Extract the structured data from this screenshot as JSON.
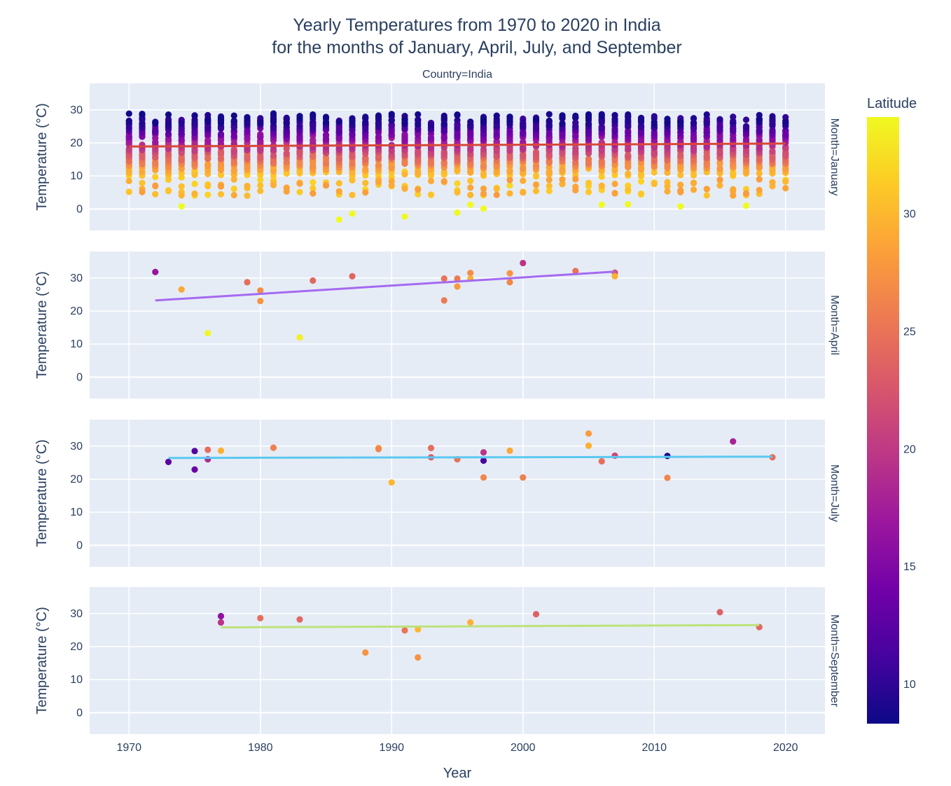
{
  "chart_data": {
    "type": "scatter",
    "title_line1": "Yearly Temperatures from 1970 to 2020 in India",
    "title_line2": "for the months of January, April, July, and September",
    "facet_label": "Country=India",
    "xlabel": "Year",
    "ylabel": "Temperature (°C)",
    "xlim": [
      1967,
      2023
    ],
    "ylim": [
      -6.5,
      38
    ],
    "x_ticks": [
      1970,
      1980,
      1990,
      2000,
      2010,
      2020
    ],
    "y_ticks": [
      0,
      10,
      20,
      30
    ],
    "colorbar": {
      "title": "Latitude",
      "range": [
        8.3,
        34.1
      ],
      "ticks": [
        10,
        15,
        20,
        25,
        30
      ],
      "colors": [
        "#0d0887",
        "#46039f",
        "#7201a8",
        "#9c179e",
        "#bd3786",
        "#d8576b",
        "#ed7953",
        "#fb9f3a",
        "#fdca26",
        "#f0f921"
      ]
    },
    "panels": [
      {
        "label": "Month=January",
        "trend": {
          "x": [
            1970,
            2020
          ],
          "y": [
            18.9,
            19.8
          ],
          "color": "#d8473a"
        },
        "dense_years": [
          1970,
          2020
        ],
        "points": [
          [
            1986,
            -3.2,
            34.1
          ],
          [
            1987,
            -1.4,
            34.1
          ],
          [
            1991,
            -2.3,
            34.1
          ],
          [
            1995,
            -1.1,
            34.1
          ],
          [
            1974,
            0.8,
            34.1
          ],
          [
            1997,
            0.1,
            34.1
          ],
          [
            2012,
            0.8,
            34.1
          ],
          [
            2017,
            1.0,
            34.1
          ],
          [
            1996,
            1.3,
            34.1
          ],
          [
            2006,
            1.3,
            34.1
          ],
          [
            2008,
            1.4,
            34.1
          ]
        ]
      },
      {
        "label": "Month=April",
        "trend": {
          "x": [
            1972,
            2007
          ],
          "y": [
            23.2,
            31.9
          ],
          "color": "#a56af0"
        },
        "points": [
          [
            1972,
            31.8,
            16.5
          ],
          [
            1974,
            26.5,
            29.0
          ],
          [
            1976,
            13.3,
            34.0
          ],
          [
            1979,
            28.7,
            24.5
          ],
          [
            1980,
            26.2,
            27.0
          ],
          [
            1980,
            23.0,
            27.5
          ],
          [
            1983,
            12.0,
            33.5
          ],
          [
            1984,
            29.2,
            24.0
          ],
          [
            1987,
            30.5,
            24.0
          ],
          [
            1994,
            29.8,
            25.0
          ],
          [
            1994,
            23.2,
            25.5
          ],
          [
            1995,
            29.8,
            25.5
          ],
          [
            1995,
            27.4,
            28.0
          ],
          [
            1996,
            31.5,
            27.0
          ],
          [
            1996,
            29.8,
            29.5
          ],
          [
            1999,
            31.4,
            27.5
          ],
          [
            1999,
            28.7,
            26.5
          ],
          [
            2000,
            34.5,
            19.5
          ],
          [
            2004,
            32.1,
            25.0
          ],
          [
            2007,
            31.6,
            22.5
          ],
          [
            2007,
            30.5,
            29.5
          ]
        ]
      },
      {
        "label": "Month=July",
        "trend": {
          "x": [
            1973,
            2019
          ],
          "y": [
            26.4,
            26.8
          ],
          "color": "#5bc8f0"
        },
        "points": [
          [
            1973,
            25.2,
            12.5
          ],
          [
            1975,
            28.5,
            12.0
          ],
          [
            1975,
            22.9,
            13.5
          ],
          [
            1976,
            28.9,
            24.5
          ],
          [
            1976,
            26.0,
            18.5
          ],
          [
            1977,
            28.6,
            29.5
          ],
          [
            1981,
            29.5,
            26.0
          ],
          [
            1989,
            29.4,
            28.5
          ],
          [
            1989,
            29.1,
            26.5
          ],
          [
            1990,
            19.0,
            30.0
          ],
          [
            1993,
            29.4,
            24.5
          ],
          [
            1993,
            26.6,
            23.0
          ],
          [
            1995,
            26.0,
            25.0
          ],
          [
            1997,
            28.1,
            19.5
          ],
          [
            1997,
            25.6,
            11.5
          ],
          [
            1997,
            20.5,
            26.5
          ],
          [
            1999,
            28.6,
            29.0
          ],
          [
            2000,
            20.5,
            26.0
          ],
          [
            2005,
            33.8,
            28.0
          ],
          [
            2005,
            30.1,
            29.5
          ],
          [
            2006,
            25.4,
            24.5
          ],
          [
            2007,
            27.1,
            21.5
          ],
          [
            2011,
            27.0,
            9.0
          ],
          [
            2011,
            20.4,
            26.5
          ],
          [
            2016,
            31.4,
            18.0
          ],
          [
            2019,
            26.6,
            24.5
          ]
        ]
      },
      {
        "label": "Month=September",
        "trend": {
          "x": [
            1977,
            2018
          ],
          "y": [
            25.8,
            26.5
          ],
          "color": "#bde27a"
        },
        "points": [
          [
            1977,
            29.2,
            16.0
          ],
          [
            1977,
            27.3,
            19.5
          ],
          [
            1980,
            28.6,
            24.5
          ],
          [
            1983,
            28.2,
            24.0
          ],
          [
            1988,
            18.2,
            27.5
          ],
          [
            1991,
            24.9,
            25.0
          ],
          [
            1992,
            25.2,
            30.0
          ],
          [
            1992,
            16.7,
            27.5
          ],
          [
            1996,
            27.3,
            29.5
          ],
          [
            2001,
            29.8,
            23.5
          ],
          [
            2015,
            30.4,
            23.5
          ],
          [
            2018,
            25.9,
            24.0
          ]
        ]
      }
    ]
  }
}
